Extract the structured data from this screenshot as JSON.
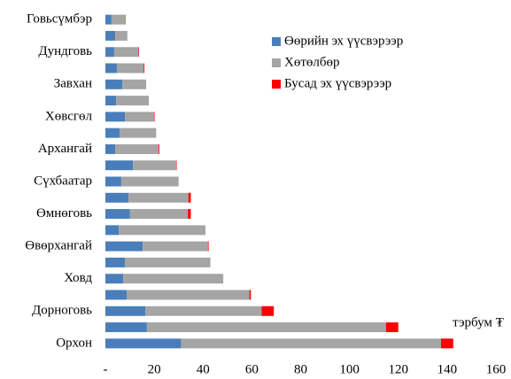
{
  "chart_data": {
    "type": "stacked-barh",
    "categories": [
      "Говьсүмбэр",
      null,
      "Дундговь",
      null,
      "Завхан",
      null,
      "Хөвсгөл",
      null,
      "Архангай",
      null,
      "Сүхбаатар",
      null,
      "Өмнөговь",
      null,
      "Өвөрхангай",
      null,
      "Ховд",
      null,
      "Дорноговь",
      null,
      "Орхон"
    ],
    "series": [
      {
        "name": "Өөрийн эх үүсвэрээр",
        "color": "#4a7ebb",
        "values": [
          2.5,
          4,
          3.6,
          4.7,
          7,
          4.4,
          8,
          5.8,
          4,
          11.3,
          6.5,
          9.5,
          10,
          5.5,
          15.3,
          8,
          7.3,
          8.7,
          16.4,
          17,
          31
        ]
      },
      {
        "name": "Хөтөлбөр",
        "color": "#a5a5a5",
        "values": [
          5.5,
          5,
          10,
          11,
          9.7,
          13.4,
          12,
          15,
          17.8,
          17.7,
          23.5,
          24.5,
          23.8,
          35.5,
          26.7,
          35,
          41,
          50.3,
          47.6,
          98,
          106.5
        ]
      },
      {
        "name": "Бусад эх үүсвэрээр",
        "color": "#ff0000",
        "values": [
          0.2,
          0,
          0.2,
          0.3,
          0,
          0,
          0.2,
          0,
          0.3,
          0.2,
          0,
          1,
          1.2,
          0,
          0.3,
          0,
          0,
          0.6,
          5,
          5,
          5
        ]
      }
    ],
    "annotation": "тэрбум ₮",
    "xlim": [
      0,
      160
    ],
    "xticks": [
      {
        "value": 0,
        "label": "-"
      },
      20,
      40,
      60,
      80,
      100,
      120,
      140,
      160
    ],
    "grid": false,
    "legend": "upper right"
  }
}
